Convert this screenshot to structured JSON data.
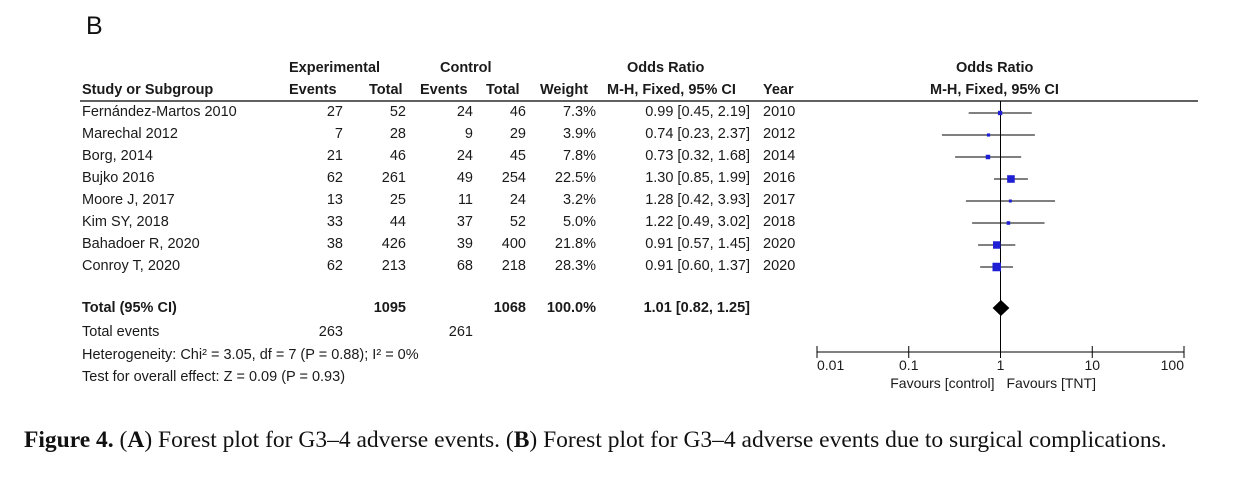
{
  "panel_label": "B",
  "headers": {
    "group1": "Experimental",
    "group2": "Control",
    "or_left_title": "Odds Ratio",
    "or_right_title": "Odds Ratio",
    "study": "Study or Subgroup",
    "events1": "Events",
    "total1": "Total",
    "events2": "Events",
    "total2": "Total",
    "weight": "Weight",
    "method_left": "M-H, Fixed, 95% CI",
    "year": "Year",
    "method_right": "M-H, Fixed, 95% CI"
  },
  "total_row": {
    "label": "Total (95% CI)",
    "total1": "1095",
    "total2": "1068",
    "weight": "100.0%",
    "ci_text": "1.01 [0.82, 1.25]"
  },
  "total_events": {
    "label": "Total events",
    "events1": "263",
    "events2": "261"
  },
  "heterogeneity": "Heterogeneity: Chi² = 3.05, df = 7 (P = 0.88); I² = 0%",
  "overall_effect": "Test for overall effect: Z = 0.09 (P = 0.93)",
  "caption": {
    "fig": "Figure 4.",
    "a_open": "(",
    "a_letter": "A",
    "a_text": ") Forest plot for G3–4 adverse events.",
    "b_open": "(",
    "b_letter": "B",
    "b_text": ") Forest plot for G3–4 adverse events due to surgical complications."
  },
  "chart_data": {
    "type": "forest",
    "x_scale": "log",
    "xlim": [
      0.01,
      100
    ],
    "ticks": [
      0.01,
      0.1,
      1,
      10,
      100
    ],
    "tick_labels": [
      "0.01",
      "0.1",
      "1",
      "10",
      "100"
    ],
    "favours_left": "Favours [control]",
    "favours_right": "Favours [TNT]",
    "null_value": 1,
    "studies": [
      {
        "name": "Fernández-Martos 2010",
        "e1": "27",
        "t1": "52",
        "e2": "24",
        "t2": "46",
        "weight": "7.3%",
        "or": 0.99,
        "lo": 0.45,
        "hi": 2.19,
        "ci_text": "0.99 [0.45, 2.19]",
        "year": "2010",
        "w": 7.3
      },
      {
        "name": "Marechal 2012",
        "e1": "7",
        "t1": "28",
        "e2": "9",
        "t2": "29",
        "weight": "3.9%",
        "or": 0.74,
        "lo": 0.23,
        "hi": 2.37,
        "ci_text": "0.74 [0.23, 2.37]",
        "year": "2012",
        "w": 3.9
      },
      {
        "name": "Borg, 2014",
        "e1": "21",
        "t1": "46",
        "e2": "24",
        "t2": "45",
        "weight": "7.8%",
        "or": 0.73,
        "lo": 0.32,
        "hi": 1.68,
        "ci_text": "0.73 [0.32, 1.68]",
        "year": "2014",
        "w": 7.8
      },
      {
        "name": "Bujko 2016",
        "e1": "62",
        "t1": "261",
        "e2": "49",
        "t2": "254",
        "weight": "22.5%",
        "or": 1.3,
        "lo": 0.85,
        "hi": 1.99,
        "ci_text": "1.30 [0.85, 1.99]",
        "year": "2016",
        "w": 22.5
      },
      {
        "name": "Moore J, 2017",
        "e1": "13",
        "t1": "25",
        "e2": "11",
        "t2": "24",
        "weight": "3.2%",
        "or": 1.28,
        "lo": 0.42,
        "hi": 3.93,
        "ci_text": "1.28 [0.42, 3.93]",
        "year": "2017",
        "w": 3.2
      },
      {
        "name": "Kim SY, 2018",
        "e1": "33",
        "t1": "44",
        "e2": "37",
        "t2": "52",
        "weight": "5.0%",
        "or": 1.22,
        "lo": 0.49,
        "hi": 3.02,
        "ci_text": "1.22 [0.49, 3.02]",
        "year": "2018",
        "w": 5.0
      },
      {
        "name": "Bahadoer R, 2020",
        "e1": "38",
        "t1": "426",
        "e2": "39",
        "t2": "400",
        "weight": "21.8%",
        "or": 0.91,
        "lo": 0.57,
        "hi": 1.45,
        "ci_text": "0.91 [0.57, 1.45]",
        "year": "2020",
        "w": 21.8
      },
      {
        "name": "Conroy T, 2020",
        "e1": "62",
        "t1": "213",
        "e2": "68",
        "t2": "218",
        "weight": "28.3%",
        "or": 0.91,
        "lo": 0.6,
        "hi": 1.37,
        "ci_text": "0.91 [0.60, 1.37]",
        "year": "2020",
        "w": 28.3
      }
    ],
    "pooled": {
      "or": 1.01,
      "lo": 0.82,
      "hi": 1.25
    },
    "colors": {
      "box": "#1f1fd6",
      "line": "#000000",
      "diamond": "#000000"
    }
  }
}
